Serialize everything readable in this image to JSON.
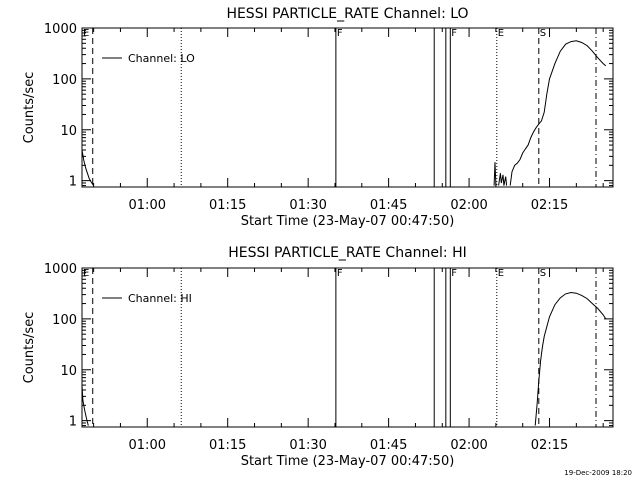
{
  "chart_data": [
    {
      "type": "line",
      "title": "HESSI PARTICLE_RATE Channel: LO",
      "xlabel": "Start Time (23-May-07 00:47:50)",
      "ylabel": "Counts/sec",
      "xlim": [
        "00:47:50",
        "02:26:50"
      ],
      "ylim": [
        0.75,
        1000
      ],
      "y_scale": "log",
      "x_ticks": [
        "01:00",
        "01:15",
        "01:30",
        "01:45",
        "02:00",
        "02:15"
      ],
      "y_ticks": [
        "1",
        "10",
        "100",
        "1000"
      ],
      "grid": false,
      "legend": {
        "position": "top-left",
        "entries": [
          "Channel: LO"
        ]
      },
      "series": [
        {
          "name": "Channel: LO",
          "segments": [
            {
              "x": [
                "00:47:50",
                "00:48:10",
                "00:48:30",
                "00:48:50",
                "00:49:10",
                "00:49:40",
                "00:50:00"
              ],
              "y": [
                4,
                2.5,
                1.8,
                1.4,
                1.1,
                0.9,
                0.8
              ]
            },
            {
              "x": [
                "02:04:40",
                "02:04:50",
                "02:05:00"
              ],
              "y": [
                0.8,
                2.3,
                0.8
              ]
            },
            {
              "x": [
                "02:05:30",
                "02:05:50",
                "02:06:00",
                "02:06:20",
                "02:06:30",
                "02:06:50",
                "02:07:00"
              ],
              "y": [
                0.8,
                1.4,
                0.9,
                1.3,
                0.8,
                1.2,
                0.8
              ]
            },
            {
              "x": [
                "02:07:40",
                "02:08:00",
                "02:08:30",
                "02:09:00",
                "02:09:30",
                "02:10:00",
                "02:10:30",
                "02:11:00",
                "02:11:30",
                "02:12:00",
                "02:12:30",
                "02:13:00",
                "02:13:30",
                "02:14:00",
                "02:14:30",
                "02:15:00",
                "02:16:00",
                "02:17:00",
                "02:18:00",
                "02:19:00",
                "02:20:00",
                "02:21:00",
                "02:22:00",
                "02:23:00",
                "02:24:00",
                "02:25:00",
                "02:25:30"
              ],
              "y": [
                0.8,
                1.5,
                2,
                2.2,
                2.6,
                3.5,
                4.2,
                5,
                7,
                9,
                11,
                13,
                15,
                22,
                50,
                100,
                200,
                350,
                480,
                540,
                560,
                520,
                450,
                350,
                260,
                200,
                180
              ]
            }
          ]
        }
      ],
      "markers": [
        {
          "label": "E",
          "x": "00:47:50",
          "style": "dash-dot"
        },
        {
          "label": "",
          "x": "00:49:50",
          "style": "dashed"
        },
        {
          "label": "",
          "x": "01:06:20",
          "style": "dotted"
        },
        {
          "label": "F",
          "x": "01:35:10",
          "style": "solid"
        },
        {
          "label": "",
          "x": "01:53:30",
          "style": "solid"
        },
        {
          "label": "",
          "x": "01:55:40",
          "style": "solid"
        },
        {
          "label": "F",
          "x": "01:56:30",
          "style": "solid"
        },
        {
          "label": "E",
          "x": "02:05:10",
          "style": "dotted"
        },
        {
          "label": "S",
          "x": "02:13:00",
          "style": "dashed"
        },
        {
          "label": "",
          "x": "02:23:40",
          "style": "dash-dot"
        }
      ]
    },
    {
      "type": "line",
      "title": "HESSI PARTICLE_RATE Channel: HI",
      "xlabel": "Start Time (23-May-07 00:47:50)",
      "ylabel": "Counts/sec",
      "xlim": [
        "00:47:50",
        "02:26:50"
      ],
      "ylim": [
        0.75,
        1000
      ],
      "y_scale": "log",
      "x_ticks": [
        "01:00",
        "01:15",
        "01:30",
        "01:45",
        "02:00",
        "02:15"
      ],
      "y_ticks": [
        "1",
        "10",
        "100",
        "1000"
      ],
      "grid": false,
      "legend": {
        "position": "top-left",
        "entries": [
          "Channel: HI"
        ]
      },
      "series": [
        {
          "name": "Channel: HI",
          "segments": [
            {
              "x": [
                "00:47:50",
                "00:48:00",
                "00:48:20",
                "00:48:40",
                "00:49:00"
              ],
              "y": [
                5,
                2.5,
                1.6,
                1.1,
                0.8
              ]
            },
            {
              "x": [
                "02:12:20",
                "02:12:40",
                "02:13:00",
                "02:13:20",
                "02:13:40",
                "02:14:00",
                "02:14:30",
                "02:15:00",
                "02:16:00",
                "02:17:00",
                "02:18:00",
                "02:19:00",
                "02:20:00",
                "02:21:00",
                "02:22:00",
                "02:23:00",
                "02:24:00",
                "02:25:00",
                "02:25:30"
              ],
              "y": [
                0.8,
                2,
                6,
                15,
                28,
                45,
                70,
                110,
                190,
                260,
                310,
                330,
                320,
                290,
                250,
                200,
                160,
                120,
                100
              ]
            }
          ]
        }
      ],
      "markers": [
        {
          "label": "E",
          "x": "00:47:50",
          "style": "dash-dot"
        },
        {
          "label": "",
          "x": "00:49:50",
          "style": "dashed"
        },
        {
          "label": "",
          "x": "01:06:20",
          "style": "dotted"
        },
        {
          "label": "F",
          "x": "01:35:10",
          "style": "solid"
        },
        {
          "label": "",
          "x": "01:53:30",
          "style": "solid"
        },
        {
          "label": "",
          "x": "01:55:40",
          "style": "solid"
        },
        {
          "label": "F",
          "x": "01:56:30",
          "style": "solid"
        },
        {
          "label": "E",
          "x": "02:05:10",
          "style": "dotted"
        },
        {
          "label": "S",
          "x": "02:13:00",
          "style": "dashed"
        },
        {
          "label": "",
          "x": "02:23:40",
          "style": "dash-dot"
        }
      ]
    }
  ],
  "footer": {
    "timestamp": "19-Dec-2009 18:20"
  }
}
